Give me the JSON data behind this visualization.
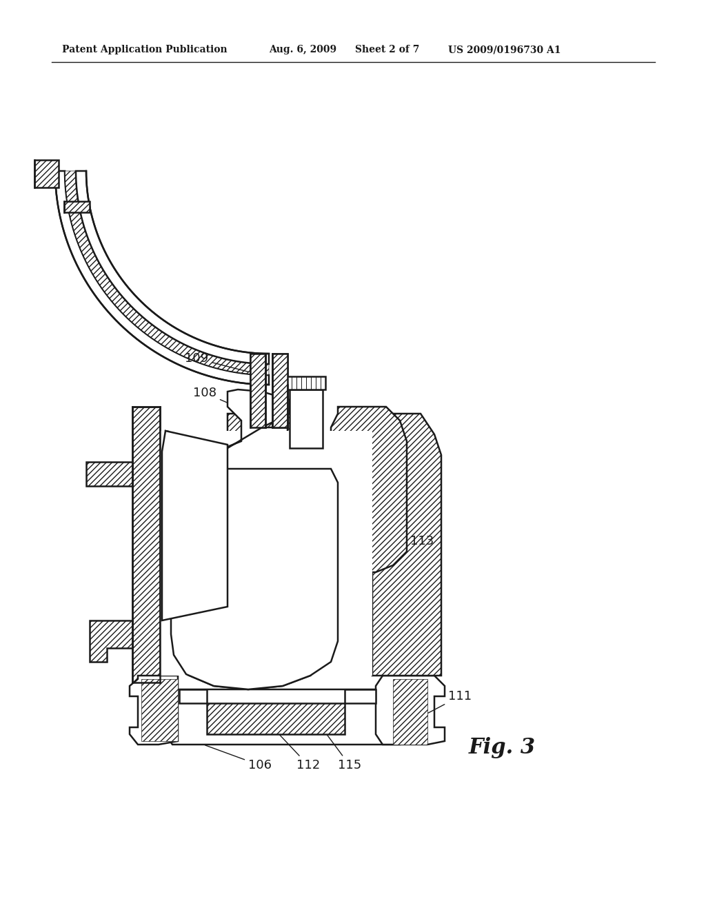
{
  "bg_color": "#ffffff",
  "line_color": "#1a1a1a",
  "header_text": "Patent Application Publication",
  "header_date": "Aug. 6, 2009",
  "header_sheet": "Sheet 2 of 7",
  "header_patent": "US 2009/0196730 A1",
  "fig_label": "Fig. 3",
  "lw_main": 1.8,
  "lw_thin": 1.0,
  "hatch_density": "////",
  "figsize": [
    10.24,
    13.2
  ],
  "dpi": 100
}
